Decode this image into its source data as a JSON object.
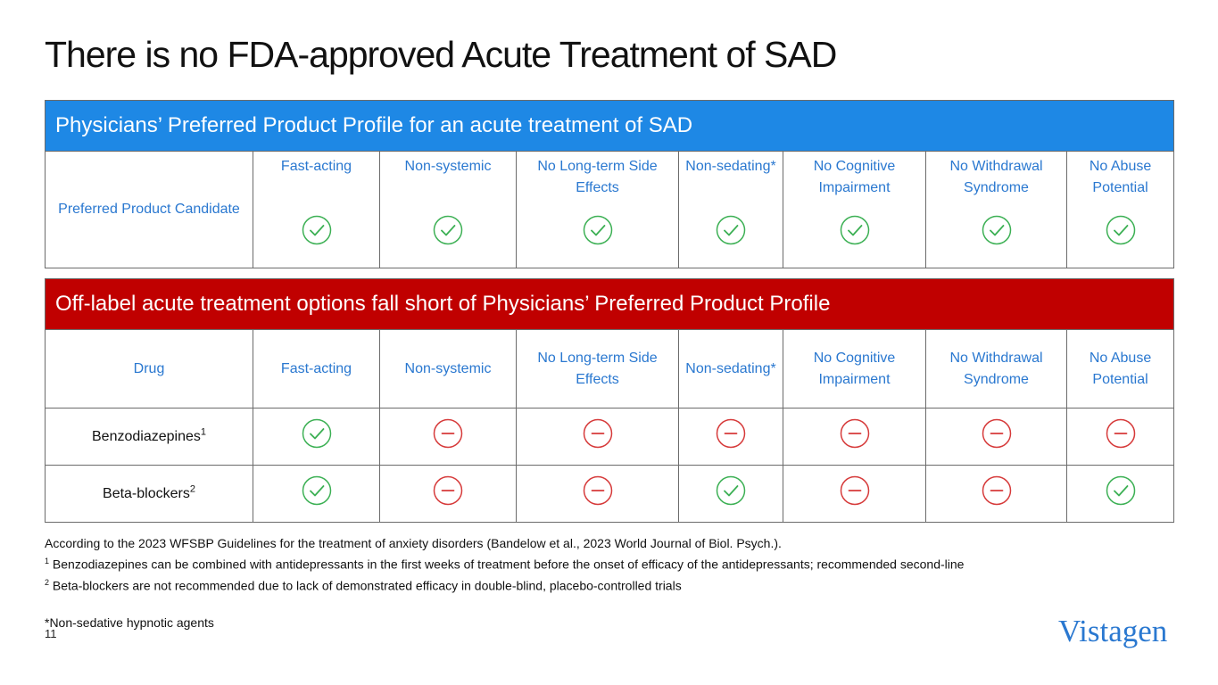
{
  "title": "There is no FDA-approved Acute Treatment of SAD",
  "colors": {
    "blue_header": "#1e88e5",
    "red_header": "#c00000",
    "text_blue": "#2a78d0",
    "check": "#3cb054",
    "minus": "#d63a3a"
  },
  "preferred_table": {
    "header": "Physicians’ Preferred Product Profile for an acute treatment of SAD",
    "row_label": "Preferred Product Candidate",
    "columns": [
      "Fast-acting",
      "Non-systemic",
      "No Long-term Side Effects",
      "Non-sedating*",
      "No Cognitive Impairment",
      "No Withdrawal Syndrome",
      "No Abuse Potential"
    ],
    "icons": [
      "check-icon",
      "check-icon",
      "check-icon",
      "check-icon",
      "check-icon",
      "check-icon",
      "check-icon"
    ]
  },
  "offlabel_table": {
    "header": "Off-label acute treatment options fall short of Physicians’ Preferred Product Profile",
    "drug_label": "Drug",
    "columns": [
      "Fast-acting",
      "Non-systemic",
      "No Long-term Side Effects",
      "Non-sedating*",
      "No Cognitive Impairment",
      "No Withdrawal Syndrome",
      "No Abuse Potential"
    ],
    "rows": [
      {
        "name": "Benzodiazepines",
        "sup": "1",
        "icons": [
          "check-icon",
          "minus-icon",
          "minus-icon",
          "minus-icon",
          "minus-icon",
          "minus-icon",
          "minus-icon"
        ]
      },
      {
        "name": "Beta-blockers",
        "sup": "2",
        "icons": [
          "check-icon",
          "minus-icon",
          "minus-icon",
          "check-icon",
          "minus-icon",
          "minus-icon",
          "check-icon"
        ]
      }
    ]
  },
  "footnotes": {
    "source": "According to the 2023 WFSBP Guidelines for the treatment of anxiety disorders (Bandelow et al., 2023 World Journal of Biol. Psych.).",
    "note1_sup": "1",
    "note1": "Benzodiazepines can be combined with antidepressants in the first weeks of treatment before the onset of efficacy of the antidepressants; recommended second-line",
    "note2_sup": "2",
    "note2": "Beta-blockers are not recommended due to lack of demonstrated efficacy in double-blind, placebo-controlled trials",
    "asterisk": "*Non-sedative hypnotic agents"
  },
  "page_number": "11",
  "logo_text": "Vistagen"
}
